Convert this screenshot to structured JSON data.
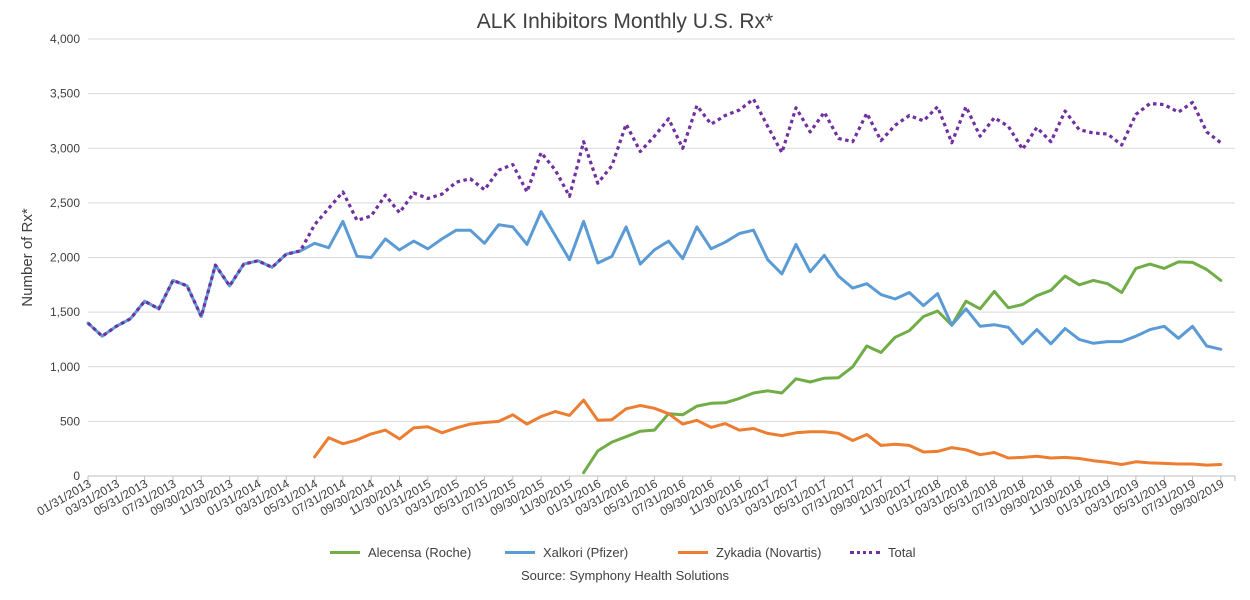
{
  "chart_data": {
    "type": "line",
    "title": "ALK Inhibitors Monthly U.S. Rx*",
    "xlabel": "",
    "ylabel": "Number of Rx*",
    "ylim": [
      0,
      4000
    ],
    "yticks": [
      "0",
      "500",
      "1,000",
      "1,500",
      "2,000",
      "2,500",
      "3,000",
      "3,500",
      "4,000"
    ],
    "ytick_values": [
      0,
      500,
      1000,
      1500,
      2000,
      2500,
      3000,
      3500,
      4000
    ],
    "grid": true,
    "legend_position": "bottom",
    "source": "Source: Symphony Health Solutions",
    "x_tick_labels": [
      "01/31/2013",
      "03/31/2013",
      "05/31/2013",
      "07/31/2013",
      "09/30/2013",
      "11/30/2013",
      "01/31/2014",
      "03/31/2014",
      "05/31/2014",
      "07/31/2014",
      "09/30/2014",
      "11/30/2014",
      "01/31/2015",
      "03/31/2015",
      "05/31/2015",
      "07/31/2015",
      "09/30/2015",
      "11/30/2015",
      "01/31/2016",
      "03/31/2016",
      "05/31/2016",
      "07/31/2016",
      "09/30/2016",
      "11/30/2016",
      "01/31/2017",
      "03/31/2017",
      "05/31/2017",
      "07/31/2017",
      "09/30/2017",
      "11/30/2017",
      "01/31/2018",
      "03/31/2018",
      "05/31/2018",
      "07/31/2018",
      "09/30/2018",
      "11/30/2018",
      "01/31/2019",
      "03/31/2019",
      "05/31/2019",
      "07/31/2019",
      "09/30/2019"
    ],
    "x_start": "01/31/2013",
    "x_end": "10/31/2019",
    "series": [
      {
        "name": "Alecensa (Roche)",
        "color": "#70ad47",
        "style": "solid",
        "start": "12/31/2015",
        "values": [
          30,
          230,
          310,
          360,
          410,
          420,
          570,
          560,
          640,
          665,
          670,
          710,
          760,
          780,
          760,
          890,
          860,
          895,
          900,
          1000,
          1190,
          1130,
          1270,
          1330,
          1460,
          1510,
          1380,
          1600,
          1530,
          1690,
          1540,
          1570,
          1650,
          1700,
          1830,
          1750,
          1790,
          1760,
          1680,
          1900,
          1940,
          1900,
          1960,
          1955,
          1890,
          1790
        ]
      },
      {
        "name": "Xalkori (Pfizer)",
        "color": "#5b9bd5",
        "style": "solid",
        "start": "01/31/2013",
        "values": [
          1400,
          1280,
          1370,
          1440,
          1600,
          1530,
          1790,
          1740,
          1460,
          1930,
          1740,
          1940,
          1970,
          1910,
          2030,
          2060,
          2130,
          2090,
          2330,
          2010,
          2000,
          2170,
          2070,
          2150,
          2080,
          2170,
          2250,
          2250,
          2130,
          2300,
          2280,
          2120,
          2420,
          2200,
          1980,
          2330,
          1950,
          2010,
          2280,
          1940,
          2070,
          2150,
          1990,
          2280,
          2080,
          2140,
          2220,
          2250,
          1980,
          1850,
          2120,
          1870,
          2020,
          1830,
          1720,
          1760,
          1660,
          1620,
          1680,
          1560,
          1670,
          1380,
          1530,
          1370,
          1385,
          1360,
          1210,
          1340,
          1210,
          1350,
          1250,
          1215,
          1230,
          1230,
          1280,
          1340,
          1370,
          1260,
          1370,
          1190,
          1160
        ]
      },
      {
        "name": "Zykadia (Novartis)",
        "color": "#ed7d31",
        "style": "solid",
        "start": "05/31/2014",
        "values": [
          175,
          350,
          295,
          330,
          385,
          420,
          340,
          440,
          450,
          395,
          440,
          475,
          490,
          500,
          560,
          475,
          545,
          590,
          555,
          695,
          510,
          515,
          615,
          645,
          620,
          570,
          475,
          510,
          445,
          480,
          420,
          435,
          390,
          370,
          395,
          405,
          405,
          390,
          325,
          380,
          280,
          290,
          280,
          220,
          225,
          260,
          240,
          195,
          215,
          165,
          170,
          180,
          165,
          170,
          160,
          140,
          125,
          105,
          130,
          120,
          115,
          110,
          110,
          100,
          105
        ]
      },
      {
        "name": "Total",
        "color": "#7030a0",
        "style": "dotted",
        "start": "01/31/2013",
        "values": [
          1400,
          1280,
          1370,
          1440,
          1600,
          1530,
          1790,
          1740,
          1460,
          1930,
          1740,
          1940,
          1970,
          1910,
          2030,
          2060,
          2300,
          2450,
          2600,
          2340,
          2380,
          2570,
          2410,
          2590,
          2540,
          2580,
          2690,
          2720,
          2620,
          2800,
          2850,
          2600,
          2960,
          2800,
          2560,
          3060,
          2680,
          2840,
          3220,
          2970,
          3110,
          3270,
          3000,
          3390,
          3220,
          3300,
          3350,
          3450,
          3200,
          2960,
          3370,
          3150,
          3330,
          3090,
          3060,
          3320,
          3070,
          3210,
          3300,
          3250,
          3380,
          3050,
          3380,
          3110,
          3280,
          3200,
          2990,
          3190,
          3060,
          3340,
          3170,
          3140,
          3130,
          3030,
          3310,
          3410,
          3400,
          3330,
          3420,
          3150,
          3050
        ]
      }
    ]
  }
}
